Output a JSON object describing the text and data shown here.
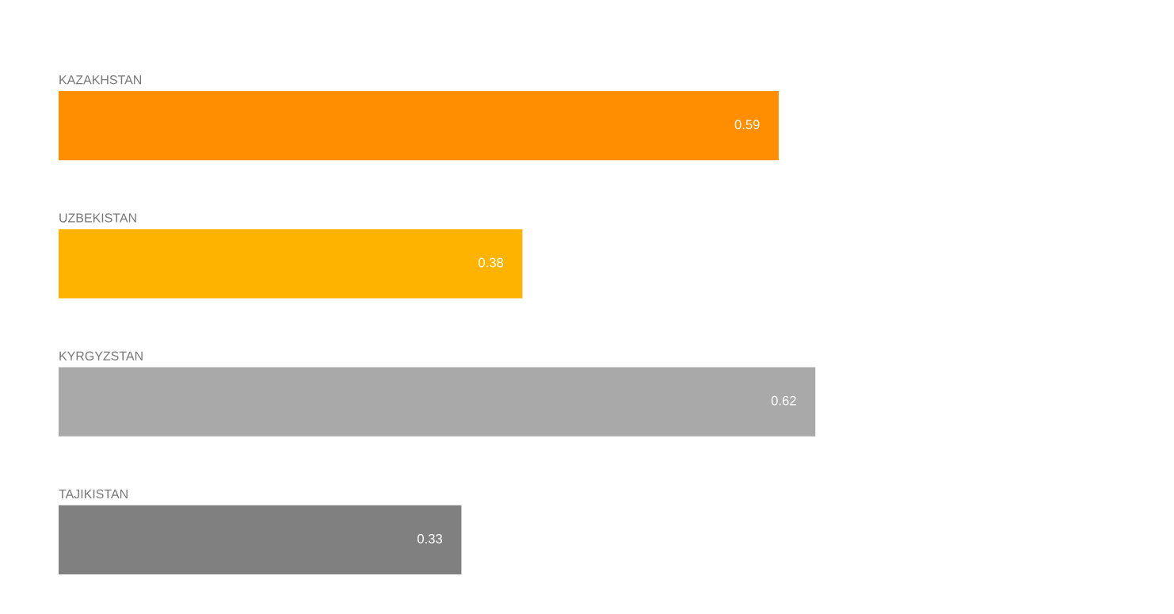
{
  "chart_data": {
    "type": "bar",
    "orientation": "horizontal",
    "categories": [
      "KAZAKHSTAN",
      "UZBEKISTAN",
      "KYRGYZSTAN",
      "TAJIKISTAN"
    ],
    "values": [
      0.59,
      0.38,
      0.62,
      0.33
    ],
    "colors": [
      "#ff8f00",
      "#fdb300",
      "#a9a9a9",
      "#808080"
    ],
    "data_labels": true
  }
}
